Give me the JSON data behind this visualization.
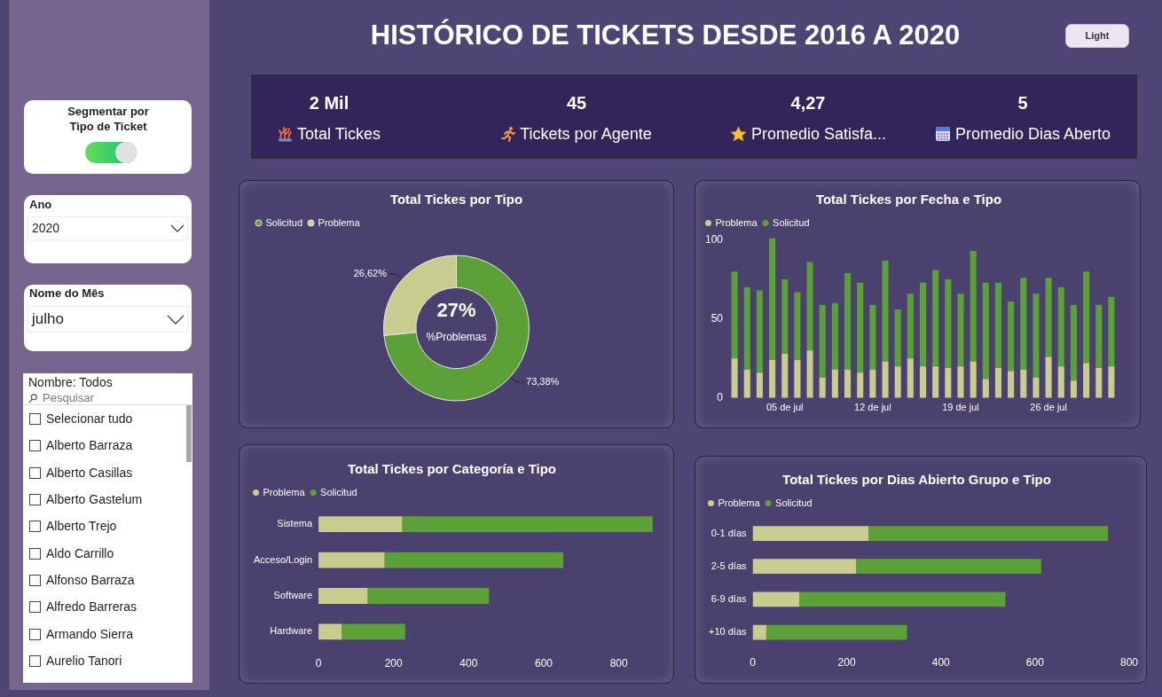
{
  "chart_data": [
    {
      "type": "other",
      "title": "HISTÓRICO DE TICKETS DESDE 2016 A 2020",
      "annotations": [
        "Light"
      ]
    },
    {
      "type": "other",
      "annotations": [
        "Segmentar por Tipo de Ticket",
        "Ano",
        "2020",
        "Nome do Mês",
        "julho",
        "Nombre: Todos",
        "Pesquisar",
        "Selecionar tudo",
        "Alberto Barraza",
        "Alberto Casillas",
        "Alberto Gastelum",
        "Alberto Trejo",
        "Aldo Carrillo",
        "Alfonso Barraza",
        "Alfredo Barreras",
        "Armando Sierra",
        "Aurelio Tanori"
      ]
    },
    {
      "type": "other",
      "annotations": [
        "2 Mil",
        "Total Tickes",
        "45",
        "Tickets por Agente",
        "4,27",
        "Promedio Satisfa...",
        "5",
        "Promedio Dias Aberto"
      ]
    },
    {
      "type": "donut",
      "title": "Total Tickes por Tipo",
      "categories": [
        "Solicitud",
        "Problema"
      ],
      "values": [
        73.38,
        26.62
      ],
      "colors": [
        "#5ba138",
        "#c8cc8f"
      ],
      "value_labels": [
        "73,38%",
        "26,62%"
      ],
      "annotations": [
        "27%",
        "%Problemas"
      ],
      "legend": "top left"
    },
    {
      "type": "bar",
      "title": "Total Tickes por Fecha e Tipo",
      "stacked": true,
      "legend": "top left",
      "categories": [
        null,
        null,
        null,
        null,
        "05 de jul",
        null,
        null,
        null,
        null,
        null,
        null,
        "12 de jul",
        null,
        null,
        null,
        null,
        null,
        null,
        "19 de jul",
        null,
        null,
        null,
        null,
        null,
        null,
        "26 de jul",
        null,
        null,
        null,
        null,
        null
      ],
      "series": [
        {
          "name": "Problema",
          "color": "#c8cc8f",
          "values": [
            25,
            18,
            16,
            24,
            28,
            24,
            30,
            13,
            18,
            18,
            16,
            18,
            23,
            20,
            25,
            20,
            20,
            19,
            20,
            23,
            12,
            19,
            17,
            18,
            13,
            26,
            20,
            11,
            22,
            19,
            20
          ]
        },
        {
          "name": "Solicitud",
          "color": "#5ba138",
          "values": [
            55,
            52,
            52,
            77,
            47,
            43,
            56,
            46,
            42,
            61,
            57,
            41,
            64,
            36,
            41,
            53,
            61,
            56,
            46,
            70,
            61,
            54,
            44,
            58,
            53,
            50,
            50,
            48,
            58,
            40,
            44
          ]
        }
      ],
      "ylim": [
        0,
        102
      ],
      "yticks": [
        0,
        50,
        100
      ]
    },
    {
      "type": "bar",
      "title": "Total Tickes por Categoría e Tipo",
      "orientation": "horizontal",
      "stacked": true,
      "legend": "top left",
      "categories": [
        "Sistema",
        "Acceso/Login",
        "Software",
        "Hardware"
      ],
      "series": [
        {
          "name": "Problema",
          "color": "#c8cc8f",
          "values": [
            223,
            176,
            131,
            62
          ]
        },
        {
          "name": "Solicitud",
          "color": "#5ba138",
          "values": [
            667,
            476,
            323,
            169
          ]
        }
      ],
      "xlim": [
        0,
        900
      ],
      "xticks": [
        0,
        200,
        400,
        600,
        800
      ]
    },
    {
      "type": "bar",
      "title": "Total Tickes por Dias Abierto Grupo e Tipo",
      "orientation": "horizontal",
      "stacked": true,
      "legend": "top left",
      "categories": [
        "0-1 días",
        "2-5 días",
        "6-9 días",
        "+10 días"
      ],
      "series": [
        {
          "name": "Problema",
          "color": "#c8cc8f",
          "values": [
            246,
            220,
            99,
            29
          ]
        },
        {
          "name": "Solicitud",
          "color": "#5ba138",
          "values": [
            509,
            393,
            438,
            299
          ]
        }
      ],
      "xlim": [
        0,
        800
      ],
      "xticks": [
        0,
        200,
        400,
        600,
        800
      ]
    }
  ]
}
